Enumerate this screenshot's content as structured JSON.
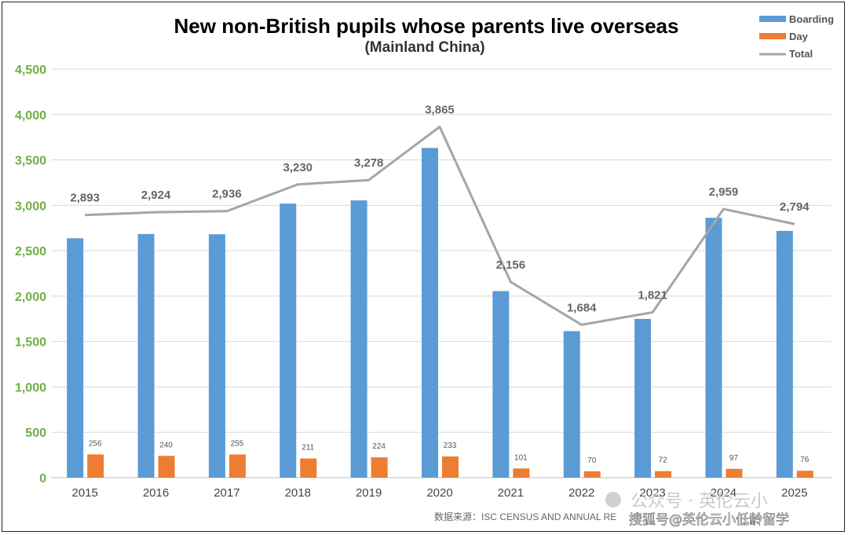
{
  "chart_data": {
    "type": "bar",
    "title": "New non-British pupils whose parents live overseas",
    "subtitle": "(Mainland China)",
    "categories": [
      "2015",
      "2016",
      "2017",
      "2018",
      "2019",
      "2020",
      "2021",
      "2022",
      "2023",
      "2024",
      "2025"
    ],
    "series": [
      {
        "name": "Boarding",
        "type": "bar",
        "color": "#5b9bd5",
        "values": [
          2637,
          2684,
          2681,
          3019,
          3054,
          3632,
          2055,
          1614,
          1749,
          2862,
          2718
        ]
      },
      {
        "name": "Day",
        "type": "bar",
        "color": "#ed7d31",
        "values": [
          256,
          240,
          255,
          211,
          224,
          233,
          101,
          70,
          72,
          97,
          76
        ]
      },
      {
        "name": "Total",
        "type": "line",
        "color": "#a5a5a5",
        "values": [
          2893,
          2924,
          2936,
          3230,
          3278,
          3865,
          2156,
          1684,
          1821,
          2959,
          2794
        ]
      }
    ],
    "ylim": [
      0,
      4500
    ],
    "yticks": [
      "0",
      "500",
      "1,000",
      "1,500",
      "2,000",
      "2,500",
      "3,000",
      "3,500",
      "4,000",
      "4,500"
    ],
    "total_labels": [
      "2,893",
      "2,924",
      "2,936",
      "3,230",
      "3,278",
      "3,865",
      "2,156",
      "1,684",
      "1,821",
      "2,959",
      "2,794"
    ],
    "day_labels": [
      "256",
      "240",
      "255",
      "211",
      "224",
      "233",
      "101",
      "70",
      "72",
      "97",
      "76"
    ],
    "grid": true,
    "legend_position": "top-right"
  },
  "source": "数据来源：ISC CENSUS AND ANNUAL RE",
  "watermark": {
    "line1": "公众号 · 英伦云小",
    "line2": "搜狐号@英伦云小低龄留学"
  }
}
